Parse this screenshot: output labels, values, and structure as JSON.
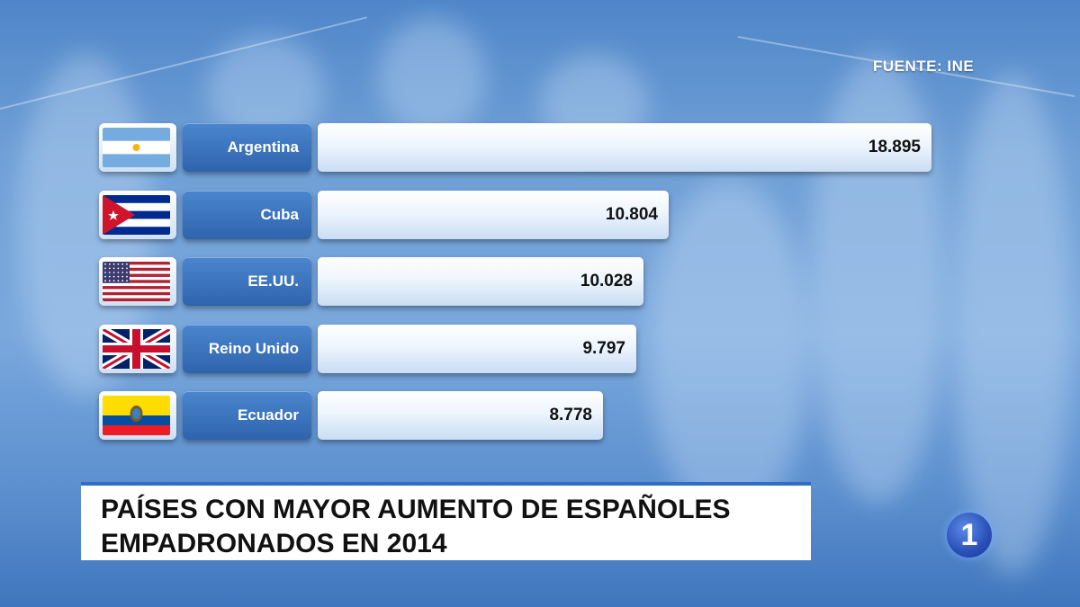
{
  "source": "FUENTE: INE",
  "caption": {
    "line1": "PAÍSES CON MAYOR AUMENTO DE ESPAÑOLES",
    "line2": "EMPADRONADOS EN 2014"
  },
  "channel_logo": "1",
  "colors": {
    "background": "#6f9fd6",
    "name_tab": "#2f64ad",
    "bar": "#eef5fd",
    "caption_accent": "#2f6ec4"
  },
  "chart_data": {
    "type": "bar",
    "orientation": "horizontal",
    "categories": [
      "Argentina",
      "Cuba",
      "EE.UU.",
      "Reino Unido",
      "Ecuador"
    ],
    "values": [
      18895,
      10804,
      10028,
      9797,
      8778
    ],
    "value_labels": [
      "18.895",
      "10.804",
      "10.028",
      "9.797",
      "8.778"
    ],
    "flags": [
      "argentina-flag-icon",
      "cuba-flag-icon",
      "usa-flag-icon",
      "uk-flag-icon",
      "ecuador-flag-icon"
    ],
    "title": "PAÍSES CON MAYOR AUMENTO DE ESPAÑOLES EMPADRONADOS EN 2014",
    "xlabel": "",
    "ylabel": ""
  }
}
